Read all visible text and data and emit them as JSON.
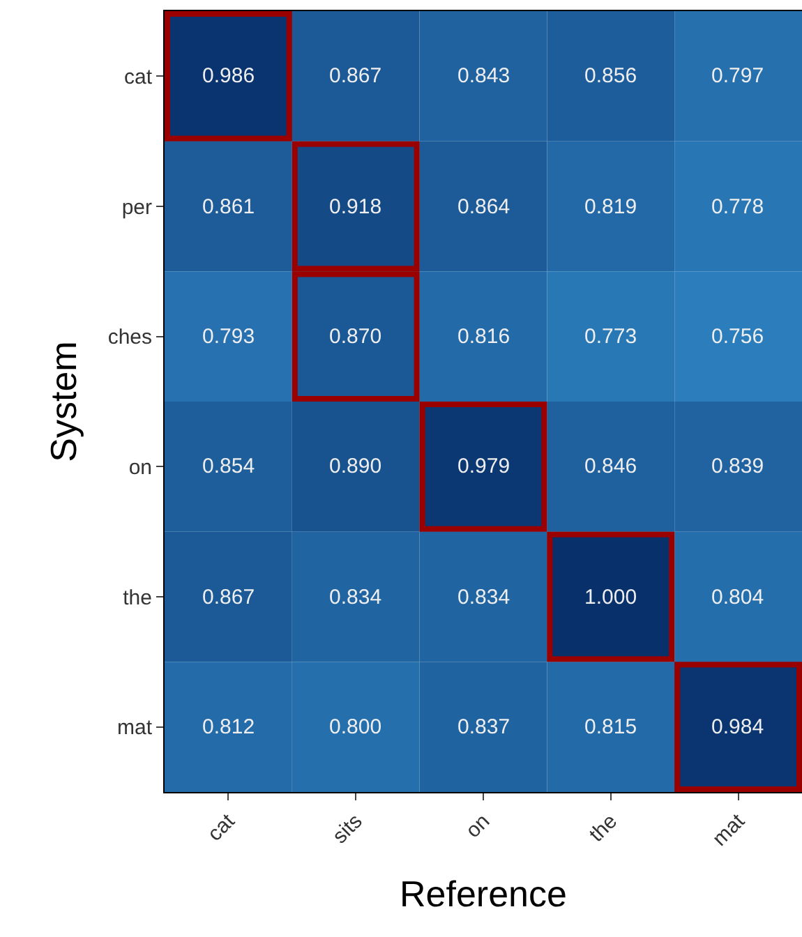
{
  "chart_data": {
    "type": "heatmap",
    "xlabel": "Reference",
    "ylabel": "System",
    "categories": [
      "cat",
      "sits",
      "on",
      "the",
      "mat"
    ],
    "y_categories": [
      "cat",
      "per",
      "ches",
      "on",
      "the",
      "mat"
    ],
    "cells": [
      [
        0.986,
        0.867,
        0.843,
        0.856,
        0.797
      ],
      [
        0.861,
        0.918,
        0.864,
        0.819,
        0.778
      ],
      [
        0.793,
        0.87,
        0.816,
        0.773,
        0.756
      ],
      [
        0.854,
        0.89,
        0.979,
        0.846,
        0.839
      ],
      [
        0.867,
        0.834,
        0.834,
        1.0,
        0.804
      ],
      [
        0.812,
        0.8,
        0.837,
        0.815,
        0.984
      ]
    ],
    "cell_labels": [
      [
        "0.986",
        "0.867",
        "0.843",
        "0.856",
        "0.797"
      ],
      [
        "0.861",
        "0.918",
        "0.864",
        "0.819",
        "0.778"
      ],
      [
        "0.793",
        "0.870",
        "0.816",
        "0.773",
        "0.756"
      ],
      [
        "0.854",
        "0.890",
        "0.979",
        "0.846",
        "0.839"
      ],
      [
        "0.867",
        "0.834",
        "0.834",
        "1.000",
        "0.804"
      ],
      [
        "0.812",
        "0.800",
        "0.837",
        "0.815",
        "0.984"
      ]
    ]
  }
}
